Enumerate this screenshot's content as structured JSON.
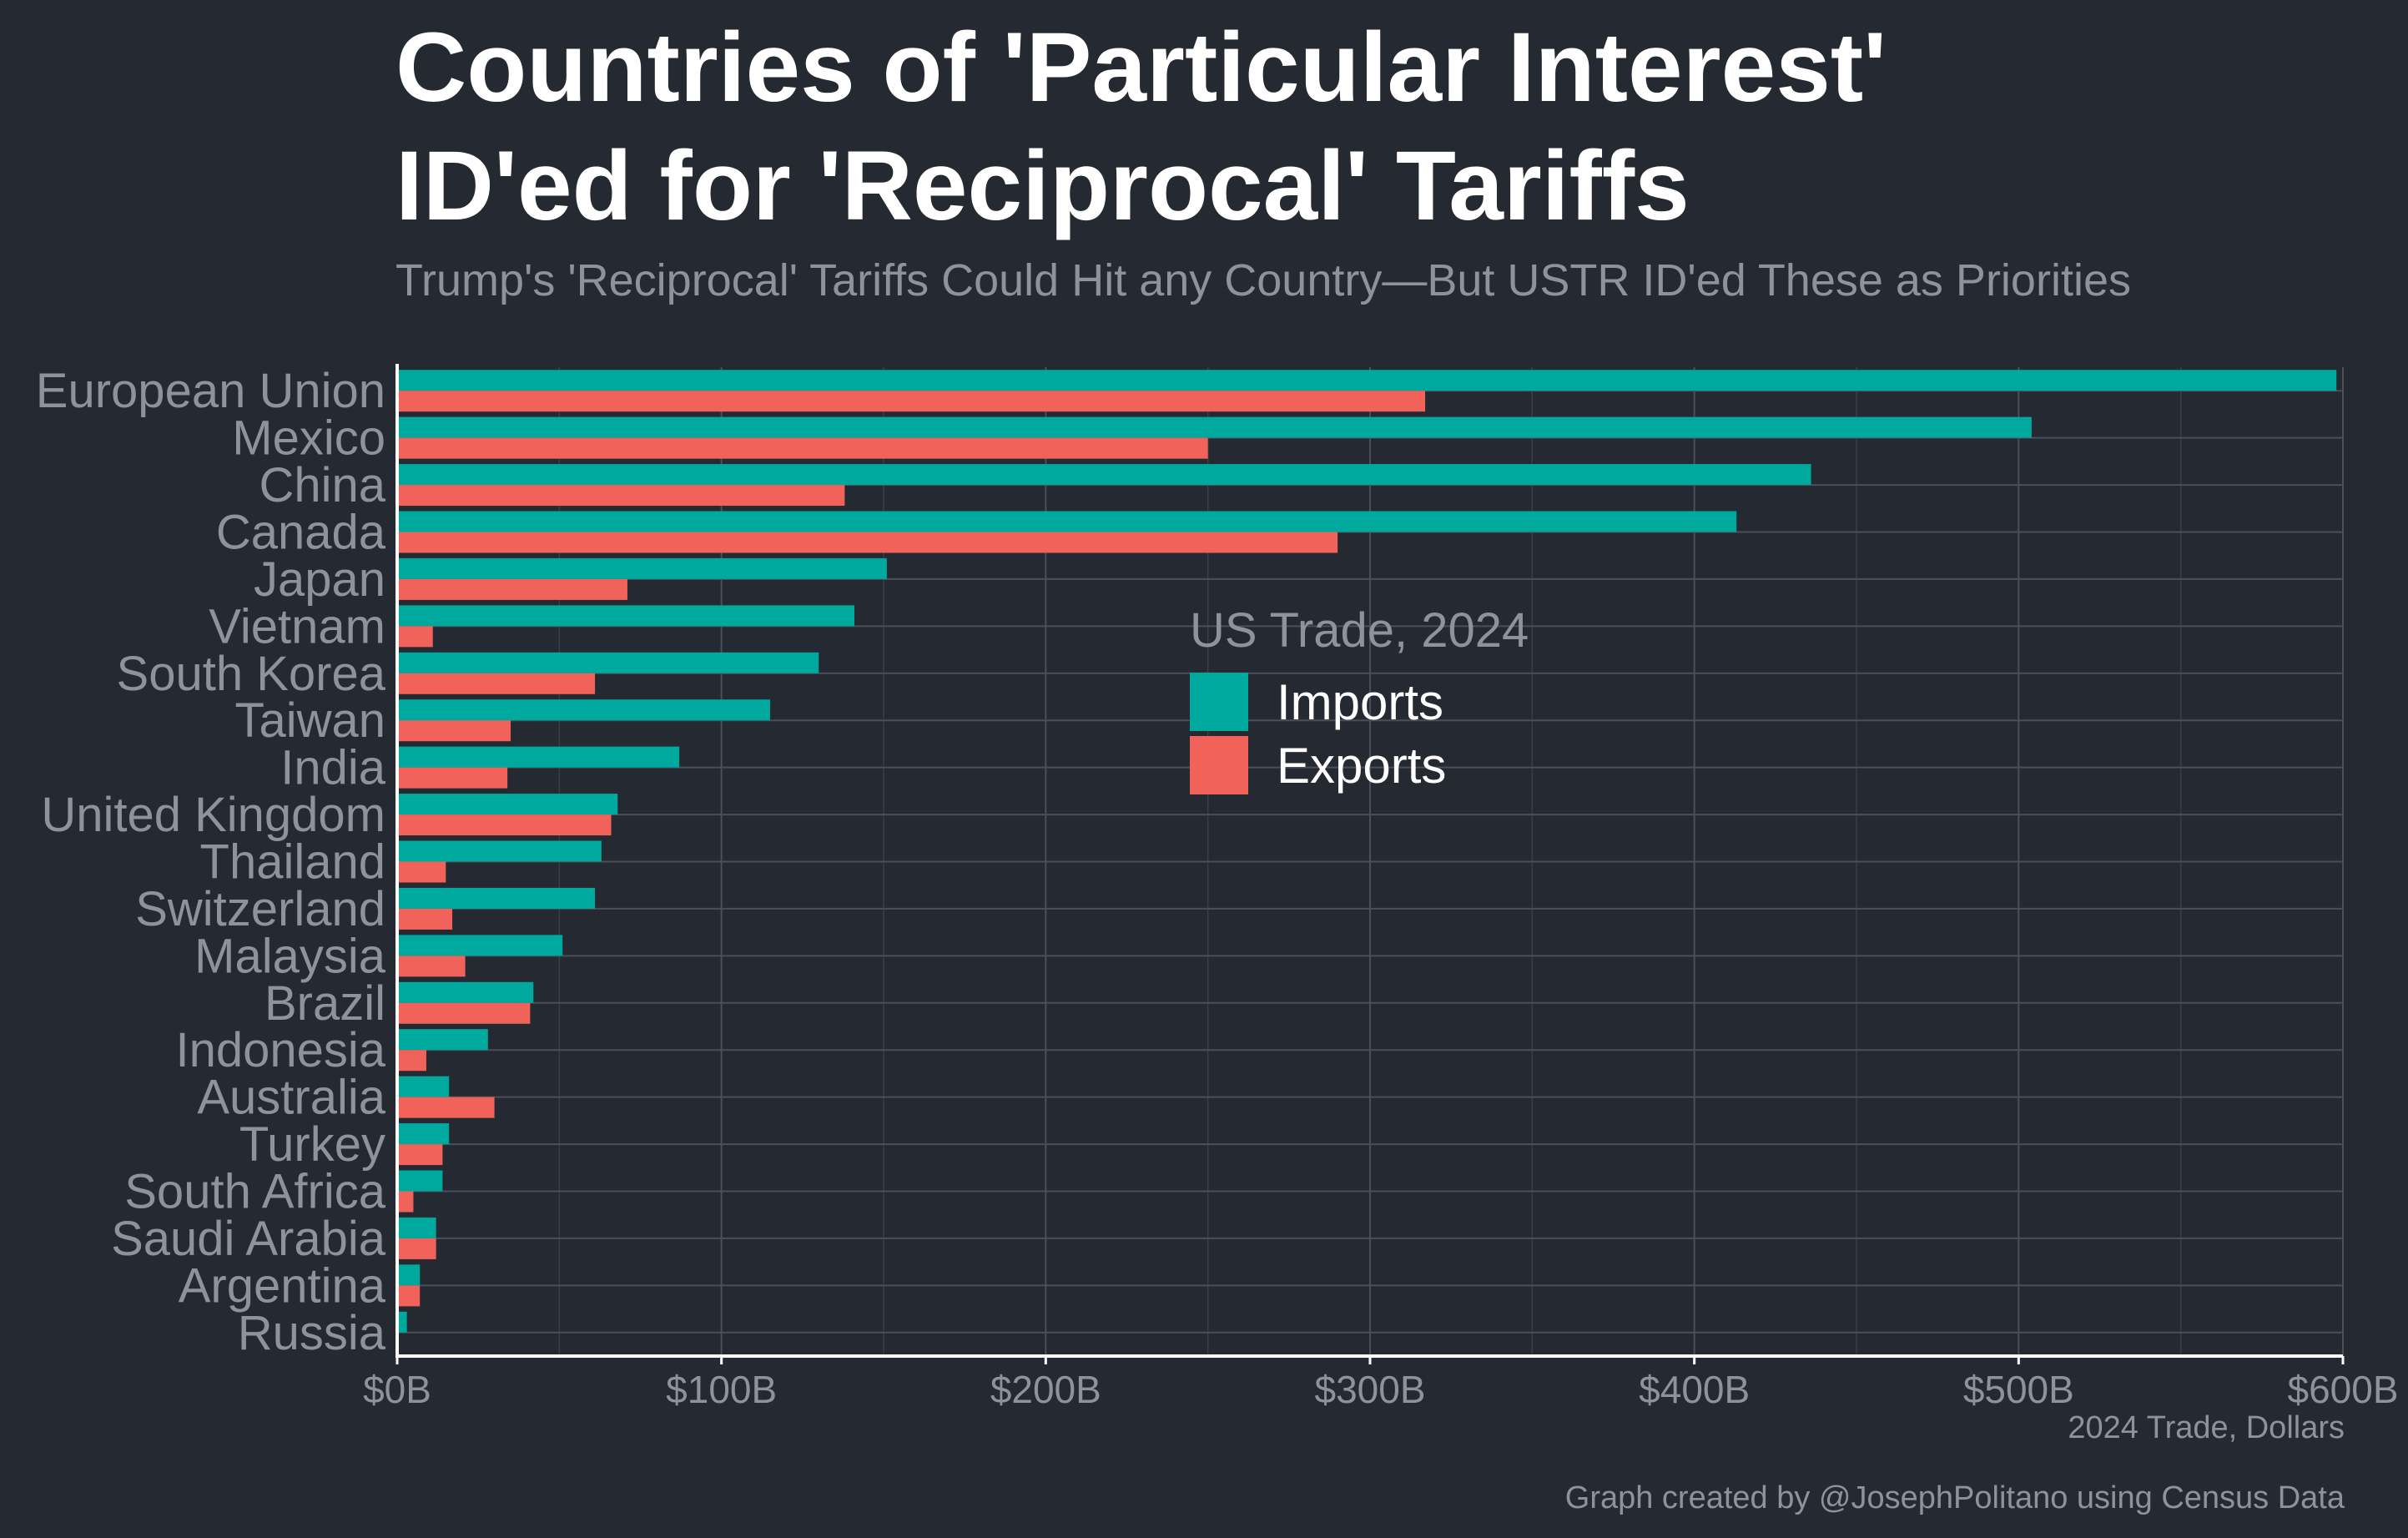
{
  "title_line1": "Countries of 'Particular Interest'",
  "title_line2": "ID'ed for 'Reciprocal' Tariffs",
  "subtitle": "Trump's 'Reciprocal' Tariffs Could Hit any Country—But USTR ID'ed These as Priorities",
  "caption": "Graph created by @JosephPolitano using Census Data",
  "chart_data": {
    "type": "bar",
    "orientation": "horizontal",
    "categories": [
      "European Union",
      "Mexico",
      "China",
      "Canada",
      "Japan",
      "Vietnam",
      "South Korea",
      "Taiwan",
      "India",
      "United Kingdom",
      "Thailand",
      "Switzerland",
      "Malaysia",
      "Brazil",
      "Indonesia",
      "Australia",
      "Turkey",
      "South Africa",
      "Saudi Arabia",
      "Argentina",
      "Russia"
    ],
    "series": [
      {
        "name": "Imports",
        "color": "#00a99d",
        "values": [
          598,
          504,
          436,
          413,
          151,
          141,
          130,
          115,
          87,
          68,
          63,
          61,
          51,
          42,
          28,
          16,
          16,
          14,
          12,
          7,
          3
        ]
      },
      {
        "name": "Exports",
        "color": "#f0625a",
        "values": [
          317,
          250,
          138,
          290,
          71,
          11,
          61,
          35,
          34,
          66,
          15,
          17,
          21,
          41,
          9,
          30,
          14,
          5,
          12,
          7,
          0.5
        ]
      }
    ],
    "xlabel": "2024 Trade, Dollars",
    "xlim": [
      0,
      600
    ],
    "xticks": [
      0,
      100,
      200,
      300,
      400,
      500,
      600
    ],
    "xtick_labels": [
      "$0B",
      "$100B",
      "$200B",
      "$300B",
      "$400B",
      "$500B",
      "$600B"
    ],
    "legend_title": "US Trade, 2024",
    "legend_labels": [
      "Imports",
      "Exports"
    ],
    "legend_position": "center",
    "grid": true
  }
}
